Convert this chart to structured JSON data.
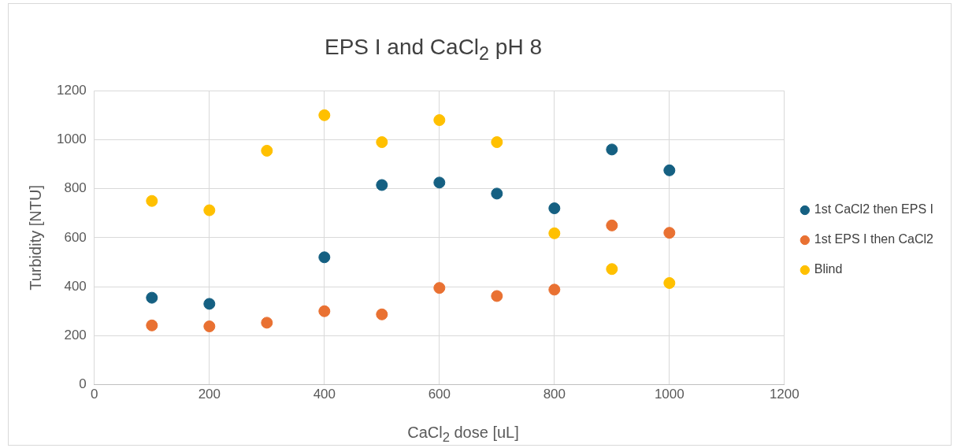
{
  "chart_data": {
    "type": "scatter",
    "title": "EPS I and CaCl$_{2}$ pH 8",
    "xlabel": "CaCl$_{2}$ dose [uL]",
    "ylabel": "Turbidity [NTU]",
    "x": [
      100,
      200,
      300,
      400,
      500,
      600,
      700,
      800,
      900,
      1000
    ],
    "series": [
      {
        "name": "1st CaCl2 then EPS I",
        "color": "#156082",
        "values": [
          355,
          330,
          null,
          520,
          815,
          825,
          780,
          720,
          960,
          875
        ]
      },
      {
        "name": "1st EPS I then CaCl2",
        "color": "#e97132",
        "values": [
          242,
          238,
          253,
          300,
          287,
          395,
          362,
          388,
          650,
          620
        ]
      },
      {
        "name": "Blind",
        "color": "#ffc000",
        "values": [
          750,
          712,
          955,
          1100,
          990,
          1080,
          990,
          618,
          472,
          415
        ]
      }
    ],
    "xlim": [
      0,
      1200
    ],
    "xticks": [
      0,
      200,
      400,
      600,
      800,
      1000,
      1200
    ],
    "ylim": [
      0,
      1200
    ],
    "yticks": [
      0,
      200,
      400,
      600,
      800,
      1000,
      1200
    ],
    "grid": true,
    "legend": "right",
    "marker": "circle"
  }
}
